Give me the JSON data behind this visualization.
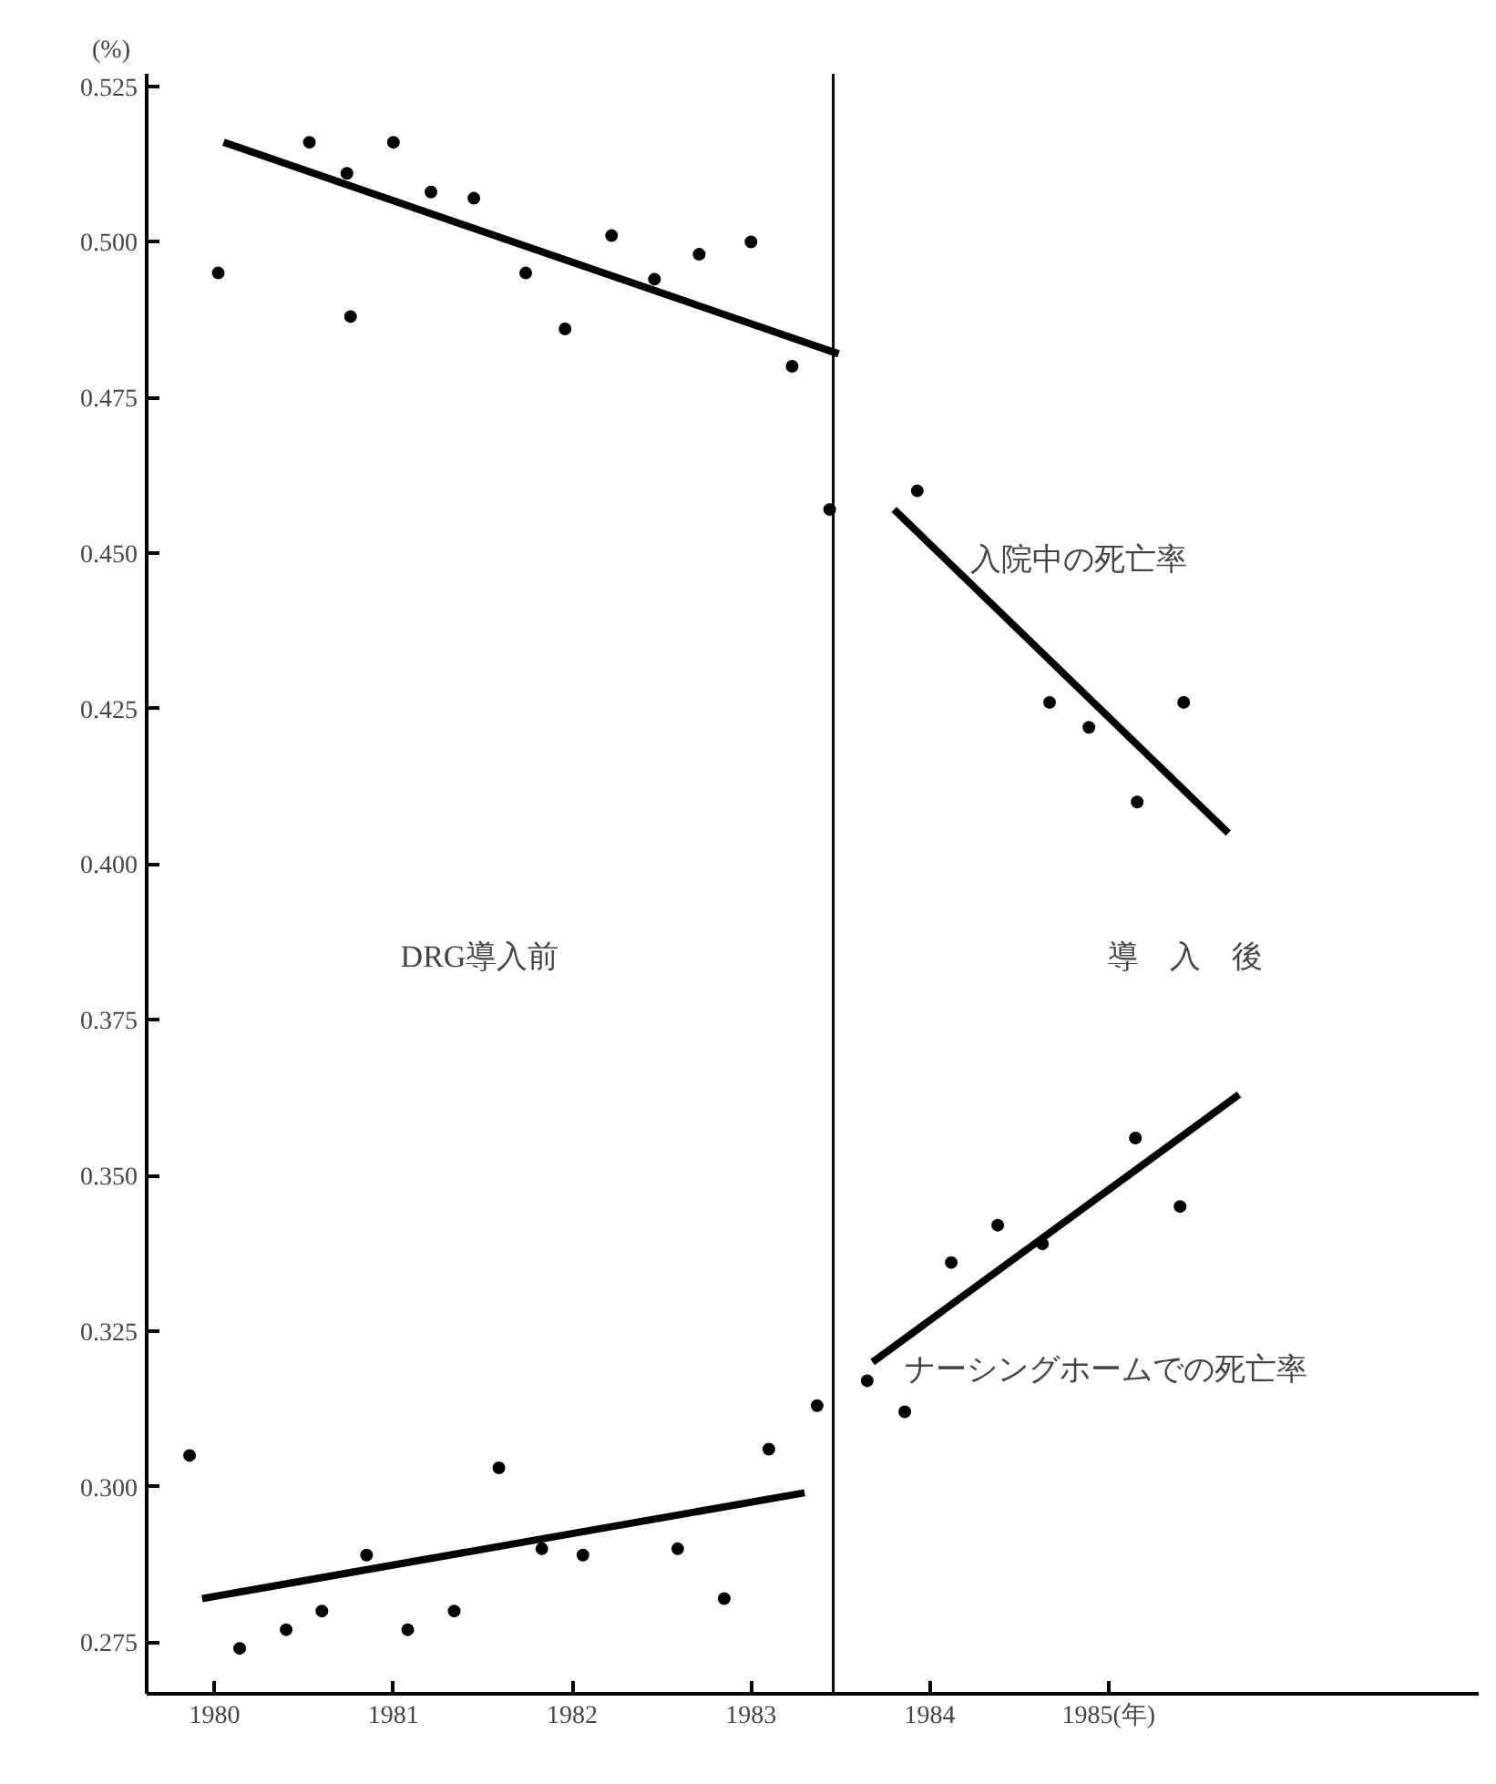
{
  "chart_data": {
    "type": "scatter",
    "ylabel": "(%)",
    "line_style": "solid",
    "grid": false,
    "xlim": [
      1979.62,
      1987.07
    ],
    "ylim": [
      0.2667,
      0.527
    ],
    "xticks": [
      1980,
      1981,
      1982,
      1983,
      1984,
      {
        "value": 1985,
        "label": "1985(年)"
      }
    ],
    "yticks": [
      {
        "value": 0.275,
        "label": "0.275"
      },
      {
        "value": 0.3,
        "label": "0.300"
      },
      {
        "value": 0.325,
        "label": "0.325"
      },
      {
        "value": 0.35,
        "label": "0.350"
      },
      {
        "value": 0.375,
        "label": "0.375"
      },
      {
        "value": 0.4,
        "label": "0.400"
      },
      {
        "value": 0.425,
        "label": "0.425"
      },
      {
        "value": 0.45,
        "label": "0.450"
      },
      {
        "value": 0.475,
        "label": "0.475"
      },
      {
        "value": 0.5,
        "label": "0.500"
      },
      {
        "value": 0.525,
        "label": "0.525"
      }
    ],
    "series": [
      {
        "marker": "circle",
        "color": "#000000",
        "x": [
          1980.02,
          1980.53,
          1980.74,
          1980.76,
          1981.0,
          1981.21,
          1981.45,
          1981.74,
          1981.96,
          1982.22,
          1982.46,
          1982.71,
          1983.0,
          1983.23,
          1983.44
        ],
        "values": [
          0.495,
          0.516,
          0.511,
          0.488,
          0.516,
          0.508,
          0.507,
          0.495,
          0.486,
          0.501,
          0.494,
          0.498,
          0.5,
          0.48,
          0.457
        ]
      },
      {
        "type": "line",
        "color": "#000000",
        "x": [
          1980.05,
          1983.49
        ],
        "values": [
          0.516,
          0.482
        ]
      },
      {
        "marker": "circle",
        "color": "#000000",
        "x": [
          1983.93,
          1984.67,
          1984.89,
          1985.16,
          1985.42
        ],
        "values": [
          0.46,
          0.426,
          0.422,
          0.41,
          0.426
        ]
      },
      {
        "type": "line",
        "color": "#000000",
        "x": [
          1983.8,
          1985.67
        ],
        "values": [
          0.457,
          0.405
        ]
      },
      {
        "marker": "circle",
        "color": "#000000",
        "x": [
          1979.86,
          1980.14,
          1980.4,
          1980.6,
          1980.85,
          1981.08,
          1981.34,
          1981.59,
          1981.83,
          1982.06,
          1982.59,
          1982.85,
          1983.1,
          1983.37
        ],
        "values": [
          0.305,
          0.274,
          0.277,
          0.28,
          0.289,
          0.277,
          0.28,
          0.303,
          0.29,
          0.289,
          0.29,
          0.282,
          0.306,
          0.313
        ]
      },
      {
        "type": "line",
        "color": "#000000",
        "x": [
          1979.93,
          1983.3
        ],
        "values": [
          0.282,
          0.299
        ]
      },
      {
        "marker": "circle",
        "color": "#000000",
        "x": [
          1983.65,
          1983.86,
          1984.12,
          1984.38,
          1984.63,
          1985.15,
          1985.4
        ],
        "values": [
          0.317,
          0.312,
          0.336,
          0.342,
          0.339,
          0.356,
          0.345
        ]
      },
      {
        "type": "line",
        "color": "#000000",
        "x": [
          1983.68,
          1985.73
        ],
        "values": [
          0.32,
          0.363
        ]
      }
    ],
    "ref_lines": [
      {
        "axis": "x",
        "value": 1983.46,
        "color": "#000000"
      }
    ],
    "annotations": [
      "入院中の死亡率",
      "ナーシングホームでの死亡率",
      "DRG導入前",
      "導　入　後"
    ]
  }
}
